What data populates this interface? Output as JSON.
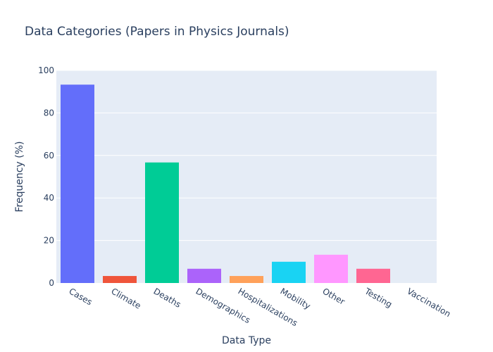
{
  "chart_data": {
    "type": "bar",
    "title": "Data Categories (Papers in Physics Journals)",
    "xlabel": "Data Type",
    "ylabel": "Frequency (%)",
    "categories": [
      "Cases",
      "Climate",
      "Deaths",
      "Demographics",
      "Hospitalizations",
      "Mobility",
      "Other",
      "Testing",
      "Vaccination"
    ],
    "values": [
      93.3,
      3.3,
      56.7,
      6.7,
      3.3,
      10.0,
      13.3,
      6.7,
      0
    ],
    "colors": [
      "#636efa",
      "#EF553B",
      "#00cc96",
      "#ab63fa",
      "#FFA15A",
      "#19d3f3",
      "#FF97FF",
      "#FF6692",
      "#B6E880"
    ],
    "ylim": [
      0,
      100
    ],
    "yticks": [
      0,
      20,
      40,
      60,
      80,
      100
    ],
    "grid": true,
    "legend": "none",
    "plot_background": "#E5ECF6"
  }
}
